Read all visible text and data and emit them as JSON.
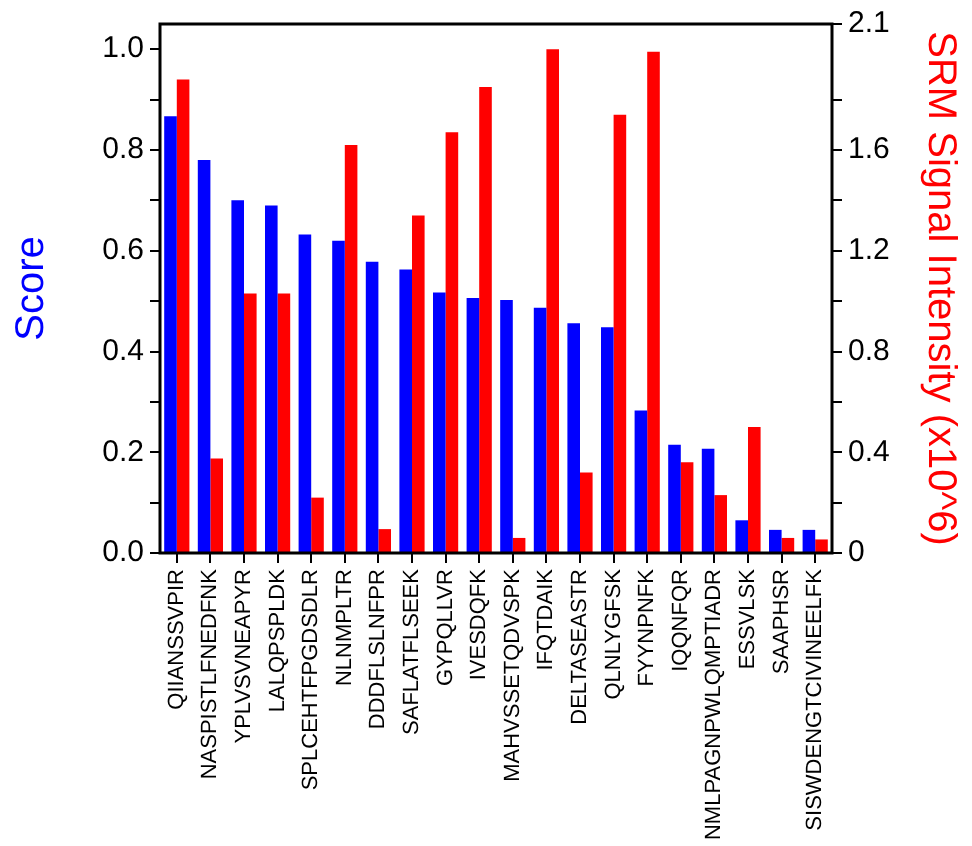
{
  "chart_data": {
    "type": "bar",
    "ylabel": "Score",
    "y2label": "SRM Signal Intensity (x10^6)",
    "categories": [
      "QIIANSSVPIR",
      "NASPISTLFNEDFNK",
      "YPLVSVNEAPYR",
      "LALQPSPLDK",
      "SPLCEHTFPGDSDLR",
      "NLNMPLTR",
      "DDDFLSLNFPR",
      "SAFLATFLSEEK",
      "GYPQLLVR",
      "IVESDQFK",
      "MAHVSSETQDVSPK",
      "IFQTDAIK",
      "DELTASEASTR",
      "QLNLYGFSK",
      "FYYNPNFK",
      "IQQNFQR",
      "NMLPAGNPWLQMPTIADR",
      "ESSVLSK",
      "SAAPHSR",
      "SISWDENGTCIVINEELFK"
    ],
    "series": [
      {
        "color": "#0000ff",
        "values": [
          0.867,
          0.78,
          0.7,
          0.69,
          0.632,
          0.62,
          0.578,
          0.563,
          0.517,
          0.506,
          0.502,
          0.487,
          0.456,
          0.448,
          0.283,
          0.215,
          0.207,
          0.065,
          0.046,
          0.046
        ]
      },
      {
        "color": "#ff0000",
        "axis": "y2",
        "values": [
          1.88,
          0.375,
          1.03,
          1.03,
          0.22,
          1.62,
          0.095,
          1.34,
          1.67,
          1.85,
          0.06,
          2.0,
          0.32,
          1.74,
          1.99,
          0.36,
          0.23,
          0.5,
          0.06,
          0.054
        ]
      }
    ],
    "ylim": [
      0,
      1.05
    ],
    "yticks": [
      {
        "value": 0,
        "label": "0.0"
      },
      {
        "value": 0.1,
        "label": null
      },
      {
        "value": 0.2,
        "label": "0.2"
      },
      {
        "value": 0.3,
        "label": null
      },
      {
        "value": 0.4,
        "label": "0.4"
      },
      {
        "value": 0.5,
        "label": null
      },
      {
        "value": 0.6,
        "label": "0.6"
      },
      {
        "value": 0.7,
        "label": null
      },
      {
        "value": 0.8,
        "label": "0.8"
      },
      {
        "value": 0.9,
        "label": null
      },
      {
        "value": 1,
        "label": "1.0"
      }
    ],
    "y2lim": [
      0,
      2.1
    ],
    "y2ticks": [
      0,
      {
        "value": 0.2,
        "label": null
      },
      0.4,
      {
        "value": 0.6,
        "label": null
      },
      0.8,
      {
        "value": 1,
        "label": null
      },
      1.2,
      {
        "value": 1.4,
        "label": null
      },
      1.6,
      {
        "value": 1.8,
        "label": null
      },
      2.1
    ],
    "legend": false,
    "grid": false
  }
}
